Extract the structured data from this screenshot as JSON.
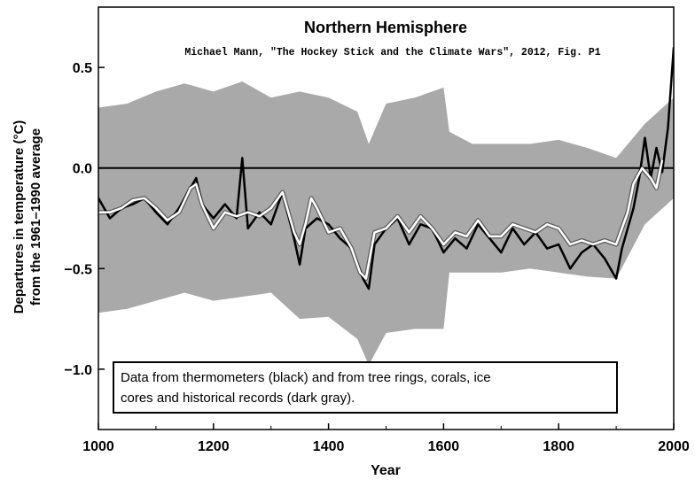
{
  "chart_data": {
    "type": "line",
    "title": "Northern Hemisphere",
    "subtitle": "Michael Mann, \"The Hockey Stick and the Climate Wars\", 2012, Fig. P1",
    "xlabel": "Year",
    "ylabel_lines": [
      "Departures in temperature (°C)",
      "from the 1961–1990 average"
    ],
    "xlim": [
      1000,
      2000
    ],
    "ylim": [
      -1.3,
      0.8
    ],
    "x_ticks": [
      1000,
      1200,
      1400,
      1600,
      1800,
      2000
    ],
    "y_ticks": [
      {
        "value": 0.5,
        "label": "0.5"
      },
      {
        "value": 0.0,
        "label": "0.0"
      },
      {
        "value": -0.5,
        "label": "−0.5"
      },
      {
        "value": -1.0,
        "label": "−1.0"
      }
    ],
    "reference_line": 0.0,
    "annotation": {
      "lines": [
        "Data from thermometers (black) and from tree rings, corals, ice",
        "cores and historical records (dark gray)."
      ]
    },
    "colors": {
      "uncertainty_band": "#a9a9a9",
      "annual_series": "#000000",
      "smoothed_series": "#ffffff"
    },
    "series": [
      {
        "role": "uncertainty_band",
        "x": [
          1000,
          1050,
          1100,
          1150,
          1200,
          1250,
          1300,
          1350,
          1400,
          1450,
          1470,
          1500,
          1550,
          1600,
          1610,
          1650,
          1700,
          1750,
          1800,
          1850,
          1900,
          1950,
          2000
        ],
        "lower": [
          -0.72,
          -0.7,
          -0.66,
          -0.62,
          -0.66,
          -0.64,
          -0.62,
          -0.75,
          -0.74,
          -0.85,
          -0.98,
          -0.82,
          -0.8,
          -0.8,
          -0.52,
          -0.52,
          -0.52,
          -0.5,
          -0.52,
          -0.54,
          -0.55,
          -0.28,
          -0.15
        ],
        "upper": [
          0.3,
          0.32,
          0.38,
          0.42,
          0.38,
          0.43,
          0.35,
          0.38,
          0.35,
          0.28,
          0.12,
          0.32,
          0.35,
          0.4,
          0.18,
          0.12,
          0.12,
          0.12,
          0.14,
          0.1,
          0.05,
          0.22,
          0.35
        ]
      },
      {
        "role": "annual_series",
        "x": [
          1000,
          1020,
          1040,
          1060,
          1080,
          1100,
          1120,
          1140,
          1160,
          1170,
          1180,
          1200,
          1220,
          1240,
          1250,
          1260,
          1280,
          1300,
          1320,
          1340,
          1350,
          1360,
          1380,
          1400,
          1420,
          1440,
          1460,
          1470,
          1480,
          1500,
          1520,
          1540,
          1560,
          1580,
          1600,
          1620,
          1640,
          1660,
          1680,
          1700,
          1720,
          1740,
          1760,
          1780,
          1800,
          1820,
          1840,
          1860,
          1880,
          1900,
          1910,
          1920,
          1930,
          1940,
          1950,
          1960,
          1970,
          1980,
          1990,
          2000
        ],
        "values": [
          -0.15,
          -0.25,
          -0.2,
          -0.18,
          -0.15,
          -0.22,
          -0.28,
          -0.2,
          -0.1,
          -0.05,
          -0.18,
          -0.25,
          -0.18,
          -0.25,
          0.05,
          -0.3,
          -0.22,
          -0.28,
          -0.12,
          -0.35,
          -0.48,
          -0.3,
          -0.25,
          -0.28,
          -0.35,
          -0.4,
          -0.55,
          -0.6,
          -0.38,
          -0.3,
          -0.25,
          -0.38,
          -0.28,
          -0.3,
          -0.42,
          -0.35,
          -0.4,
          -0.28,
          -0.35,
          -0.42,
          -0.3,
          -0.38,
          -0.32,
          -0.4,
          -0.38,
          -0.5,
          -0.42,
          -0.38,
          -0.45,
          -0.55,
          -0.4,
          -0.3,
          -0.2,
          -0.05,
          0.15,
          -0.05,
          0.1,
          -0.02,
          0.2,
          0.6
        ]
      },
      {
        "role": "smoothed_series",
        "x": [
          1000,
          1020,
          1040,
          1060,
          1080,
          1100,
          1120,
          1140,
          1160,
          1170,
          1180,
          1200,
          1220,
          1240,
          1260,
          1280,
          1300,
          1320,
          1340,
          1350,
          1360,
          1370,
          1380,
          1400,
          1420,
          1440,
          1455,
          1465,
          1480,
          1500,
          1520,
          1540,
          1560,
          1580,
          1600,
          1620,
          1640,
          1660,
          1680,
          1700,
          1720,
          1740,
          1760,
          1780,
          1800,
          1820,
          1840,
          1860,
          1880,
          1900,
          1920,
          1930,
          1945,
          1960,
          1970,
          1980
        ],
        "values": [
          -0.22,
          -0.22,
          -0.2,
          -0.16,
          -0.15,
          -0.2,
          -0.26,
          -0.22,
          -0.1,
          -0.08,
          -0.18,
          -0.3,
          -0.22,
          -0.24,
          -0.22,
          -0.24,
          -0.2,
          -0.12,
          -0.32,
          -0.38,
          -0.28,
          -0.15,
          -0.2,
          -0.32,
          -0.3,
          -0.4,
          -0.52,
          -0.55,
          -0.32,
          -0.3,
          -0.24,
          -0.32,
          -0.24,
          -0.3,
          -0.38,
          -0.32,
          -0.34,
          -0.26,
          -0.34,
          -0.34,
          -0.28,
          -0.3,
          -0.32,
          -0.28,
          -0.3,
          -0.38,
          -0.36,
          -0.38,
          -0.36,
          -0.38,
          -0.22,
          -0.08,
          0.0,
          -0.05,
          -0.1,
          0.04
        ]
      }
    ]
  }
}
